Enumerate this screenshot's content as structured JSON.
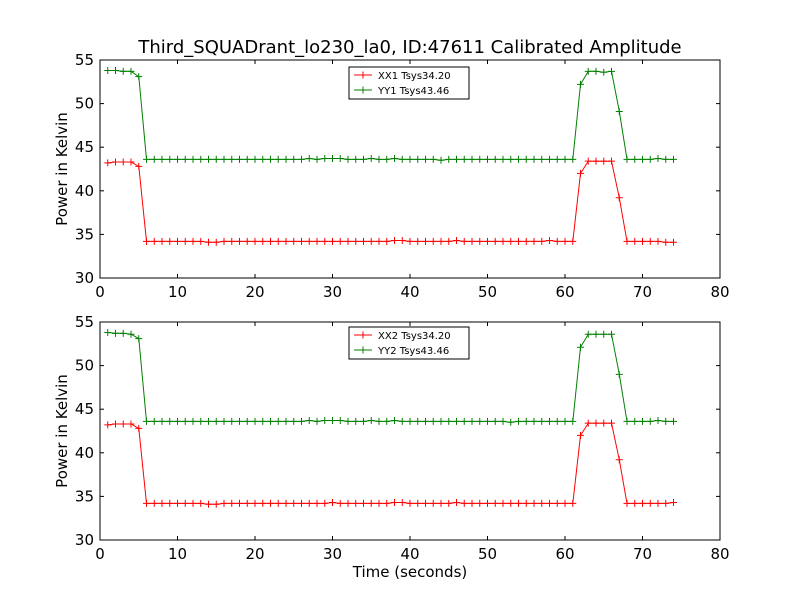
{
  "title": "Third_SQUADrant_lo230_la0, ID:47611 Calibrated Amplitude",
  "colors": {
    "xx": "#ff0000",
    "yy": "#008000"
  },
  "chart_data": [
    {
      "type": "line",
      "ylabel": "Power in Kelvin",
      "xlabel": "",
      "xlim": [
        0,
        80
      ],
      "ylim": [
        30,
        55
      ],
      "xticks": [
        0,
        10,
        20,
        30,
        40,
        50,
        60,
        70,
        80
      ],
      "yticks": [
        30,
        35,
        40,
        45,
        50,
        55
      ],
      "grid": false,
      "marker": "plus",
      "legend_position": "top-center",
      "x": [
        1,
        2,
        3,
        4,
        5,
        6,
        7,
        8,
        9,
        10,
        11,
        12,
        13,
        14,
        15,
        16,
        17,
        18,
        19,
        20,
        21,
        22,
        23,
        24,
        25,
        26,
        27,
        28,
        29,
        30,
        31,
        32,
        33,
        34,
        35,
        36,
        37,
        38,
        39,
        40,
        41,
        42,
        43,
        44,
        45,
        46,
        47,
        48,
        49,
        50,
        51,
        52,
        53,
        54,
        55,
        56,
        57,
        58,
        59,
        60,
        61,
        62,
        63,
        64,
        65,
        66,
        67,
        68,
        69,
        70,
        71,
        72,
        73,
        74
      ],
      "series": [
        {
          "name": "XX1 Tsys34.20",
          "color": "#ff0000",
          "values": [
            43.2,
            43.3,
            43.3,
            43.3,
            42.8,
            34.2,
            34.2,
            34.2,
            34.2,
            34.2,
            34.2,
            34.2,
            34.2,
            34.1,
            34.1,
            34.2,
            34.2,
            34.2,
            34.2,
            34.2,
            34.2,
            34.2,
            34.2,
            34.2,
            34.2,
            34.2,
            34.2,
            34.2,
            34.2,
            34.2,
            34.2,
            34.2,
            34.2,
            34.2,
            34.2,
            34.2,
            34.2,
            34.3,
            34.3,
            34.2,
            34.2,
            34.2,
            34.2,
            34.2,
            34.2,
            34.3,
            34.2,
            34.2,
            34.2,
            34.2,
            34.2,
            34.2,
            34.2,
            34.2,
            34.2,
            34.2,
            34.2,
            34.3,
            34.2,
            34.2,
            34.2,
            42.0,
            43.4,
            43.4,
            43.4,
            43.4,
            39.2,
            34.2,
            34.2,
            34.2,
            34.2,
            34.2,
            34.1,
            34.1
          ]
        },
        {
          "name": "YY1 Tsys43.46",
          "color": "#008000",
          "values": [
            53.8,
            53.8,
            53.7,
            53.7,
            53.1,
            43.6,
            43.6,
            43.6,
            43.6,
            43.6,
            43.6,
            43.6,
            43.6,
            43.6,
            43.6,
            43.6,
            43.6,
            43.6,
            43.6,
            43.6,
            43.6,
            43.6,
            43.6,
            43.6,
            43.6,
            43.6,
            43.7,
            43.6,
            43.7,
            43.7,
            43.7,
            43.6,
            43.6,
            43.6,
            43.7,
            43.6,
            43.6,
            43.7,
            43.6,
            43.6,
            43.6,
            43.6,
            43.6,
            43.5,
            43.6,
            43.6,
            43.6,
            43.6,
            43.6,
            43.6,
            43.6,
            43.6,
            43.6,
            43.6,
            43.6,
            43.6,
            43.6,
            43.6,
            43.6,
            43.6,
            43.6,
            52.2,
            53.7,
            53.7,
            53.6,
            53.7,
            49.1,
            43.6,
            43.6,
            43.6,
            43.6,
            43.7,
            43.6,
            43.6
          ]
        }
      ]
    },
    {
      "type": "line",
      "ylabel": "Power in Kelvin",
      "xlabel": "Time (seconds)",
      "xlim": [
        0,
        80
      ],
      "ylim": [
        30,
        55
      ],
      "xticks": [
        0,
        10,
        20,
        30,
        40,
        50,
        60,
        70,
        80
      ],
      "yticks": [
        30,
        35,
        40,
        45,
        50,
        55
      ],
      "grid": false,
      "marker": "plus",
      "legend_position": "top-center",
      "x": [
        1,
        2,
        3,
        4,
        5,
        6,
        7,
        8,
        9,
        10,
        11,
        12,
        13,
        14,
        15,
        16,
        17,
        18,
        19,
        20,
        21,
        22,
        23,
        24,
        25,
        26,
        27,
        28,
        29,
        30,
        31,
        32,
        33,
        34,
        35,
        36,
        37,
        38,
        39,
        40,
        41,
        42,
        43,
        44,
        45,
        46,
        47,
        48,
        49,
        50,
        51,
        52,
        53,
        54,
        55,
        56,
        57,
        58,
        59,
        60,
        61,
        62,
        63,
        64,
        65,
        66,
        67,
        68,
        69,
        70,
        71,
        72,
        73,
        74
      ],
      "series": [
        {
          "name": "XX2 Tsys34.20",
          "color": "#ff0000",
          "values": [
            43.2,
            43.3,
            43.3,
            43.3,
            42.8,
            34.2,
            34.2,
            34.2,
            34.2,
            34.2,
            34.2,
            34.2,
            34.2,
            34.1,
            34.1,
            34.2,
            34.2,
            34.2,
            34.2,
            34.2,
            34.2,
            34.2,
            34.2,
            34.2,
            34.2,
            34.2,
            34.2,
            34.2,
            34.2,
            34.3,
            34.2,
            34.2,
            34.2,
            34.2,
            34.2,
            34.2,
            34.2,
            34.3,
            34.3,
            34.2,
            34.2,
            34.2,
            34.2,
            34.2,
            34.2,
            34.3,
            34.2,
            34.2,
            34.2,
            34.2,
            34.2,
            34.2,
            34.2,
            34.2,
            34.2,
            34.2,
            34.2,
            34.2,
            34.2,
            34.2,
            34.2,
            42.0,
            43.4,
            43.4,
            43.4,
            43.4,
            39.2,
            34.2,
            34.2,
            34.2,
            34.2,
            34.2,
            34.2,
            34.3
          ]
        },
        {
          "name": "YY2 Tsys43.46",
          "color": "#008000",
          "values": [
            53.8,
            53.7,
            53.7,
            53.6,
            53.1,
            43.6,
            43.6,
            43.6,
            43.6,
            43.6,
            43.6,
            43.6,
            43.6,
            43.6,
            43.6,
            43.6,
            43.6,
            43.6,
            43.6,
            43.6,
            43.6,
            43.6,
            43.6,
            43.6,
            43.6,
            43.6,
            43.7,
            43.6,
            43.7,
            43.7,
            43.7,
            43.6,
            43.6,
            43.6,
            43.7,
            43.6,
            43.6,
            43.7,
            43.6,
            43.6,
            43.6,
            43.6,
            43.6,
            43.6,
            43.6,
            43.6,
            43.6,
            43.6,
            43.6,
            43.6,
            43.6,
            43.6,
            43.5,
            43.6,
            43.6,
            43.6,
            43.6,
            43.6,
            43.6,
            43.6,
            43.6,
            52.1,
            53.6,
            53.6,
            53.6,
            53.6,
            49.0,
            43.6,
            43.6,
            43.6,
            43.6,
            43.7,
            43.6,
            43.6
          ]
        }
      ]
    }
  ]
}
